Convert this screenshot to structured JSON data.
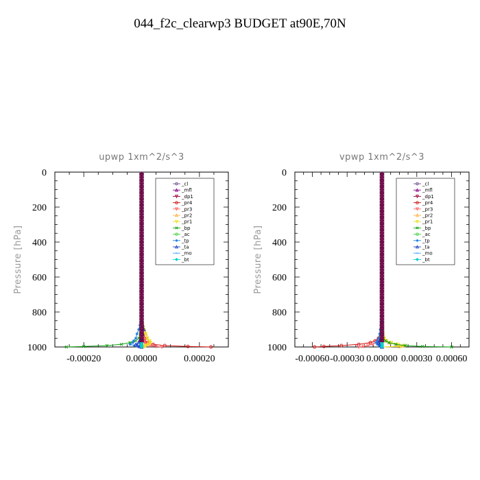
{
  "title": "044_f2c_clearwp3  BUDGET at90E,70N",
  "chart_data": [
    {
      "type": "line",
      "title": "upwp   1xm^2/s^3",
      "ylabel": "Pressure [hPa]",
      "xlabel": "",
      "xlim": [
        -0.0003,
        0.0003
      ],
      "ylim": [
        1000,
        0
      ],
      "xticks": [
        -0.0002,
        0.0,
        0.0002
      ],
      "xtick_labels": [
        "-0.00020",
        "0.00000",
        "0.00020"
      ],
      "yticks": [
        0,
        200,
        400,
        600,
        800,
        1000
      ],
      "ytick_labels": [
        "0",
        "200",
        "400",
        "600",
        "800",
        "1000"
      ],
      "legend": "top-right",
      "y": [
        850,
        875,
        900,
        925,
        950,
        965,
        975,
        985,
        992,
        997,
        1000
      ],
      "series": [
        {
          "name": "_cl",
          "color": "#6e4f8c",
          "values": [
            0,
            0,
            0,
            0,
            0,
            0,
            0,
            0,
            0,
            0,
            0
          ]
        },
        {
          "name": "_mfl",
          "color": "#8b008b",
          "values": [
            0,
            0,
            0,
            0,
            0,
            0,
            0,
            0,
            0,
            0,
            0
          ]
        },
        {
          "name": "_dp1",
          "color": "#a00030",
          "values": [
            0,
            0,
            0,
            0,
            0,
            0,
            0,
            0,
            0,
            0,
            0
          ]
        },
        {
          "name": "_pr4",
          "color": "#d01010",
          "values": [
            0,
            2e-06,
            4e-06,
            8e-06,
            1e-05,
            1e-05,
            2e-05,
            4e-05,
            8e-05,
            0.00016,
            0.00024
          ]
        },
        {
          "name": "_pr3",
          "color": "#ff6060",
          "values": [
            0,
            0,
            2e-06,
            4e-06,
            6e-06,
            8e-06,
            1e-05,
            2e-05,
            3e-05,
            5e-05,
            7e-05
          ]
        },
        {
          "name": "_pr2",
          "color": "#ffb040",
          "values": [
            0,
            5e-06,
            1e-05,
            1.5e-05,
            2e-05,
            2.5e-05,
            3e-05,
            2e-05,
            1e-05,
            5e-06,
            0
          ]
        },
        {
          "name": "_pr1",
          "color": "#e8e020",
          "values": [
            0,
            4e-06,
            8e-06,
            1.4e-05,
            2e-05,
            2.8e-05,
            3e-05,
            2.5e-05,
            1.5e-05,
            8e-06,
            0
          ]
        },
        {
          "name": "_bp",
          "color": "#10a010",
          "values": [
            0,
            0,
            -2e-06,
            -5e-06,
            -1e-05,
            -2e-05,
            -4e-05,
            -7e-05,
            -0.00012,
            -0.0002,
            -0.00026
          ]
        },
        {
          "name": "_ac",
          "color": "#40d040",
          "values": [
            0,
            0,
            0,
            0,
            0,
            0,
            0,
            0,
            0,
            0,
            0
          ]
        },
        {
          "name": "_tp",
          "color": "#2080e0",
          "values": [
            0,
            -6e-06,
            -1e-05,
            -1.6e-05,
            -2e-05,
            -2.8e-05,
            -3e-05,
            -4e-05,
            -2.5e-05,
            -1e-05,
            0
          ]
        },
        {
          "name": "_ta",
          "color": "#2040c0",
          "values": [
            0,
            4e-06,
            8e-06,
            4e-06,
            0,
            -8e-06,
            -1e-05,
            -2e-05,
            -1.5e-05,
            -8e-06,
            0
          ]
        },
        {
          "name": "_mo",
          "color": "#40a0ff",
          "values": [
            0,
            0,
            0,
            0,
            0,
            0,
            0,
            0,
            0,
            0,
            0
          ]
        },
        {
          "name": "_bt",
          "color": "#00d0d0",
          "values": [
            0,
            0,
            0,
            0,
            0,
            0,
            0,
            0,
            0,
            0,
            0
          ]
        }
      ]
    },
    {
      "type": "line",
      "title": "vpwp   1xm^2/s^3",
      "ylabel": "Pressure [hPa]",
      "xlabel": "",
      "xlim": [
        -0.00075,
        0.00075
      ],
      "ylim": [
        1000,
        0
      ],
      "xticks": [
        -0.0006,
        -0.0003,
        0.0,
        0.0003,
        0.0006
      ],
      "xtick_labels": [
        "-0.00060",
        "-0.00030",
        "0.00000",
        "0.00030",
        "0.00060"
      ],
      "yticks": [
        0,
        200,
        400,
        600,
        800,
        1000
      ],
      "ytick_labels": [
        "0",
        "200",
        "400",
        "600",
        "800",
        "1000"
      ],
      "legend": "top-right",
      "y": [
        850,
        875,
        900,
        925,
        950,
        965,
        975,
        985,
        992,
        997,
        1000
      ],
      "series": [
        {
          "name": "_cl",
          "color": "#6e4f8c",
          "values": [
            0,
            0,
            0,
            0,
            0,
            0,
            0,
            0,
            0,
            0,
            0
          ]
        },
        {
          "name": "_mfl",
          "color": "#8b008b",
          "values": [
            0,
            0,
            0,
            0,
            0,
            0,
            0,
            0,
            0,
            0,
            0
          ]
        },
        {
          "name": "_dp1",
          "color": "#a00030",
          "values": [
            0,
            0,
            0,
            0,
            0,
            0,
            0,
            0,
            0,
            0,
            0
          ]
        },
        {
          "name": "_pr4",
          "color": "#d01010",
          "values": [
            0,
            0,
            -5e-06,
            -1e-05,
            -3e-05,
            -6e-05,
            -0.0001,
            -0.0002,
            -0.00035,
            -0.0005,
            -0.00058
          ]
        },
        {
          "name": "_pr3",
          "color": "#ff6060",
          "values": [
            0,
            0,
            -3e-06,
            -6e-06,
            -1e-05,
            -2e-05,
            -4e-05,
            -8e-05,
            -0.00012,
            -0.00016,
            -0.0002
          ]
        },
        {
          "name": "_pr2",
          "color": "#ffb040",
          "values": [
            0,
            0,
            5e-06,
            1e-05,
            2e-05,
            4e-05,
            7e-05,
            0.00012,
            0.00018,
            0.00015,
            0
          ]
        },
        {
          "name": "_pr1",
          "color": "#e8e020",
          "values": [
            0,
            0,
            5e-06,
            1e-05,
            2e-05,
            4e-05,
            8e-05,
            0.00014,
            0.0002,
            0.00016,
            0
          ]
        },
        {
          "name": "_bp",
          "color": "#10a010",
          "values": [
            0,
            0,
            2e-06,
            5e-06,
            1e-05,
            3e-05,
            6e-05,
            0.00012,
            0.0002,
            0.00035,
            0.0006
          ]
        },
        {
          "name": "_ac",
          "color": "#40d040",
          "values": [
            0,
            0,
            0,
            0,
            0,
            0,
            0,
            0,
            0,
            0,
            0
          ]
        },
        {
          "name": "_tp",
          "color": "#2080e0",
          "values": [
            0,
            -1e-05,
            -1.5e-05,
            -2e-05,
            -3e-05,
            -4e-05,
            -5e-05,
            -4e-05,
            -2e-05,
            -1e-05,
            0
          ]
        },
        {
          "name": "_ta",
          "color": "#2040c0",
          "values": [
            0,
            5e-06,
            0,
            -5e-06,
            -1e-05,
            -2e-05,
            -3e-05,
            -2e-05,
            -1e-05,
            0,
            0
          ]
        },
        {
          "name": "_mo",
          "color": "#40a0ff",
          "values": [
            0,
            0,
            0,
            0,
            0,
            0,
            0,
            0,
            0,
            0,
            0
          ]
        },
        {
          "name": "_bt",
          "color": "#00d0d0",
          "values": [
            0,
            0,
            0,
            0,
            0,
            0,
            0,
            0,
            0,
            0,
            0
          ]
        }
      ]
    }
  ]
}
